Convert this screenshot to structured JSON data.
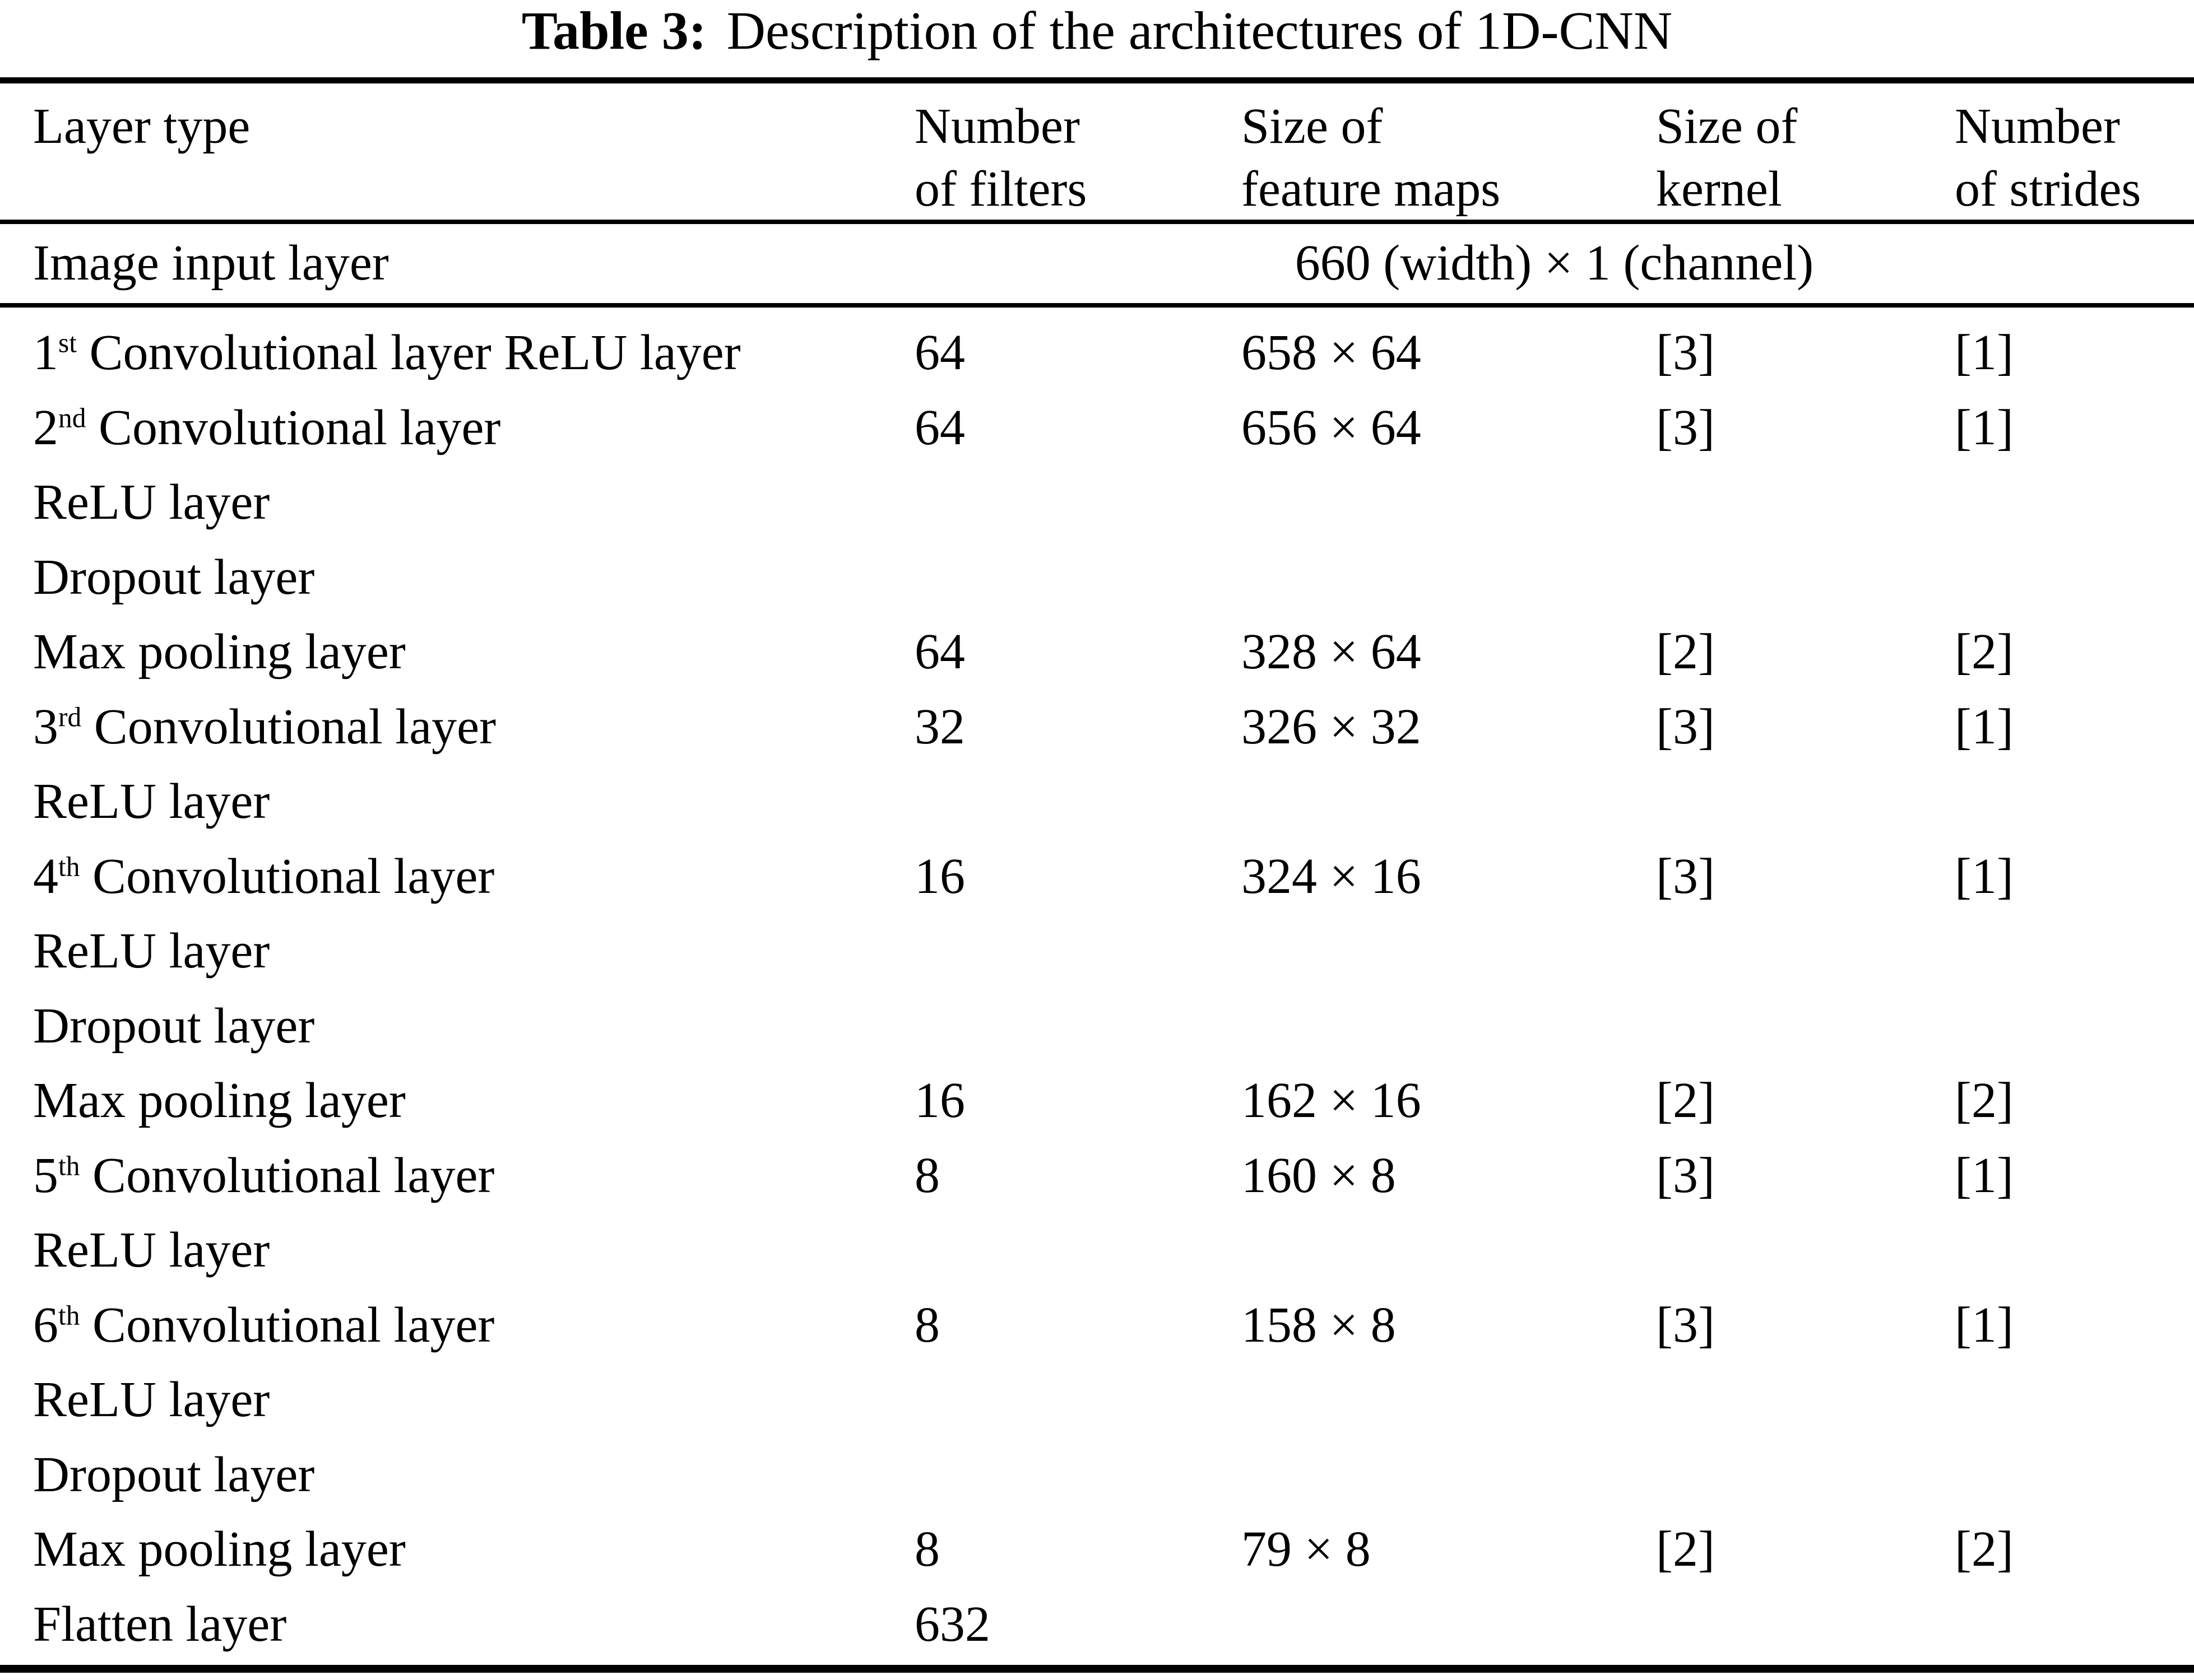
{
  "colors": {
    "background": "#ffffff",
    "text": "#000000"
  },
  "caption": {
    "label": "Table 3:",
    "text": "Description of the architectures of 1D-CNN"
  },
  "table": {
    "columns": [
      {
        "line1": "Layer type",
        "line2": ""
      },
      {
        "line1": "Number",
        "line2": "of filters"
      },
      {
        "line1": "Size of",
        "line2": "feature maps"
      },
      {
        "line1": "Size of",
        "line2": "kernel"
      },
      {
        "line1": "Number",
        "line2": "of strides"
      }
    ],
    "input_row": {
      "layer": "Image input layer",
      "spanned_value": "660 (width) × 1 (channel)"
    },
    "rows": [
      {
        "prefix": "1",
        "sup": "st",
        "text": " Convolutional layer ReLU layer",
        "filters": "64",
        "maps": "658 × 64",
        "kernel": "[3]",
        "strides": "[1]"
      },
      {
        "prefix": "2",
        "sup": "nd",
        "text": " Convolutional layer",
        "filters": "64",
        "maps": "656 × 64",
        "kernel": "[3]",
        "strides": "[1]"
      },
      {
        "prefix": "",
        "sup": "",
        "text": "ReLU layer",
        "filters": "",
        "maps": "",
        "kernel": "",
        "strides": ""
      },
      {
        "prefix": "",
        "sup": "",
        "text": "Dropout layer",
        "filters": "",
        "maps": "",
        "kernel": "",
        "strides": ""
      },
      {
        "prefix": "",
        "sup": "",
        "text": "Max pooling layer",
        "filters": "64",
        "maps": "328 × 64",
        "kernel": "[2]",
        "strides": "[2]"
      },
      {
        "prefix": "3",
        "sup": "rd",
        "text": " Convolutional layer",
        "filters": "32",
        "maps": "326 × 32",
        "kernel": "[3]",
        "strides": "[1]"
      },
      {
        "prefix": "",
        "sup": "",
        "text": "ReLU layer",
        "filters": "",
        "maps": "",
        "kernel": "",
        "strides": ""
      },
      {
        "prefix": "4",
        "sup": "th",
        "text": " Convolutional layer",
        "filters": "16",
        "maps": "324 × 16",
        "kernel": "[3]",
        "strides": "[1]"
      },
      {
        "prefix": "",
        "sup": "",
        "text": "ReLU layer",
        "filters": "",
        "maps": "",
        "kernel": "",
        "strides": ""
      },
      {
        "prefix": "",
        "sup": "",
        "text": "Dropout layer",
        "filters": "",
        "maps": "",
        "kernel": "",
        "strides": ""
      },
      {
        "prefix": "",
        "sup": "",
        "text": "Max pooling layer",
        "filters": "16",
        "maps": "162 × 16",
        "kernel": "[2]",
        "strides": "[2]"
      },
      {
        "prefix": "5",
        "sup": "th",
        "text": " Convolutional layer",
        "filters": "8",
        "maps": "160 × 8",
        "kernel": "[3]",
        "strides": "[1]"
      },
      {
        "prefix": "",
        "sup": "",
        "text": "ReLU layer",
        "filters": "",
        "maps": "",
        "kernel": "",
        "strides": ""
      },
      {
        "prefix": "6",
        "sup": "th",
        "text": " Convolutional layer",
        "filters": "8",
        "maps": "158 × 8",
        "kernel": "[3]",
        "strides": "[1]"
      },
      {
        "prefix": "",
        "sup": "",
        "text": "ReLU layer",
        "filters": "",
        "maps": "",
        "kernel": "",
        "strides": ""
      },
      {
        "prefix": "",
        "sup": "",
        "text": "Dropout layer",
        "filters": "",
        "maps": "",
        "kernel": "",
        "strides": ""
      },
      {
        "prefix": "",
        "sup": "",
        "text": "Max pooling layer",
        "filters": "8",
        "maps": "79 × 8",
        "kernel": "[2]",
        "strides": "[2]"
      },
      {
        "prefix": "",
        "sup": "",
        "text": "Flatten layer",
        "filters": "632",
        "maps": "",
        "kernel": "",
        "strides": ""
      }
    ]
  }
}
